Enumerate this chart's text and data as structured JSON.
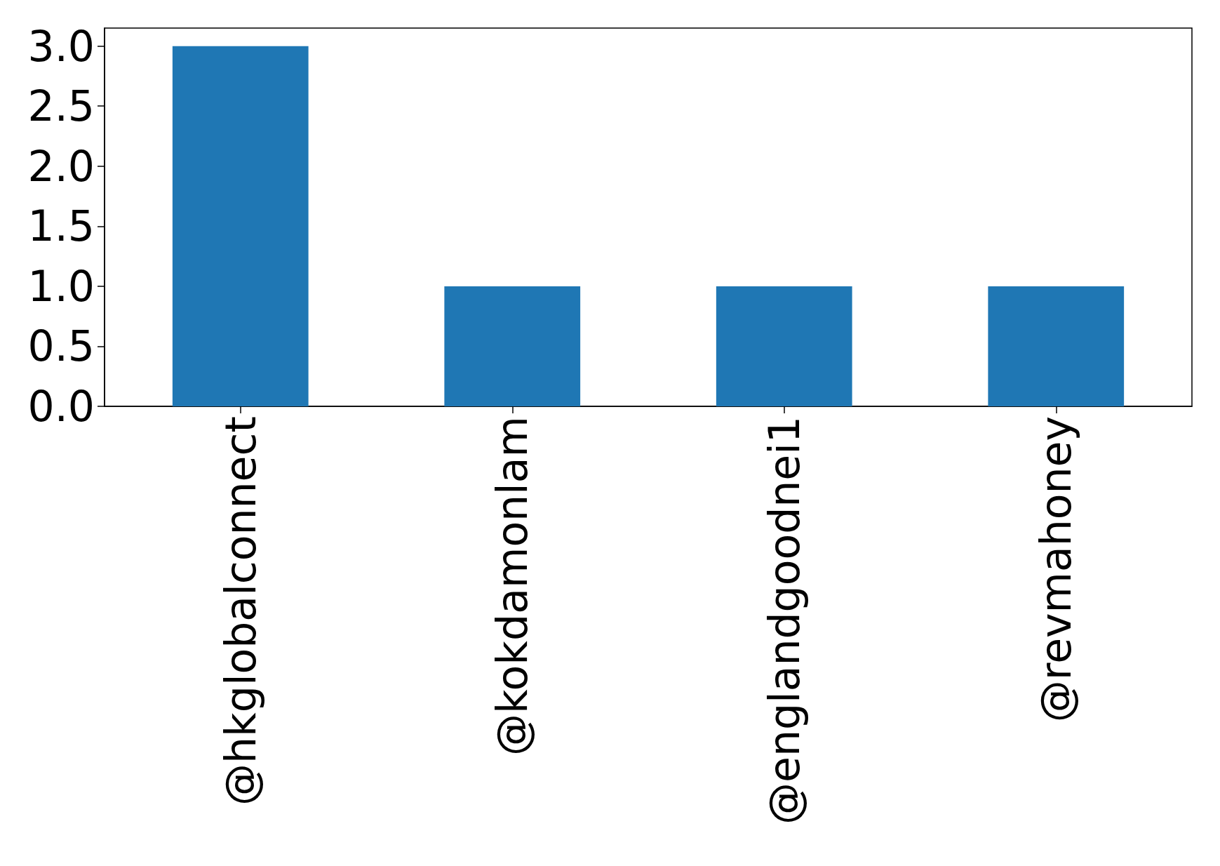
{
  "chart_data": {
    "type": "bar",
    "categories": [
      "@hkglobalconnect",
      "@kokdamonlam",
      "@englandgoodnei1",
      "@revmahoney"
    ],
    "values": [
      3,
      1,
      1,
      1
    ],
    "color": "#1f77b4",
    "ylim": [
      0,
      3.15
    ],
    "yticks": [
      {
        "value": 0,
        "label": "0.0"
      },
      {
        "value": 0.5,
        "label": "0.5"
      },
      {
        "value": 1,
        "label": "1.0"
      },
      {
        "value": 1.5,
        "label": "1.5"
      },
      {
        "value": 2,
        "label": "2.0"
      },
      {
        "value": 2.5,
        "label": "2.5"
      },
      {
        "value": 3,
        "label": "3.0"
      }
    ],
    "grid": false
  }
}
